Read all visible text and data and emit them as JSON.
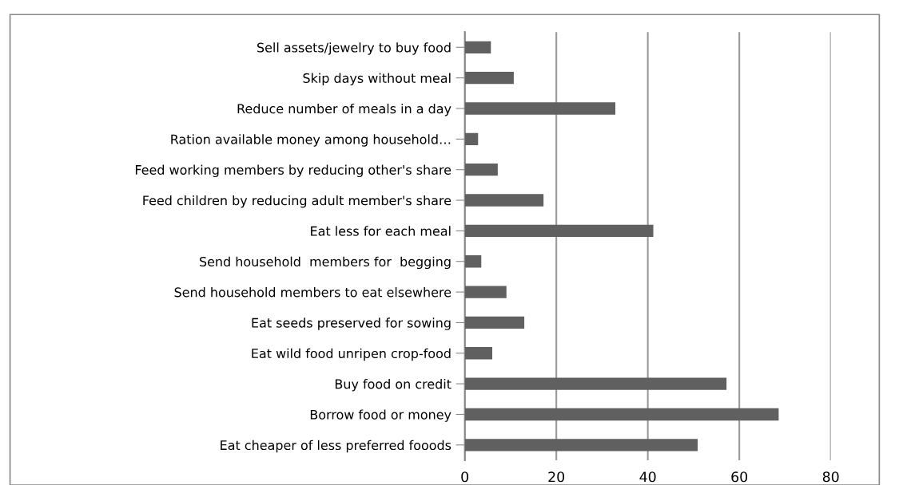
{
  "chart_data": {
    "type": "bar",
    "orientation": "horizontal",
    "categories": [
      "Sell assets/jewelry to buy food",
      "Skip days without meal",
      "Reduce number of meals in a day",
      "Ration available money among household…",
      "Feed working members by reducing other's share",
      "Feed children by reducing adult member's share",
      "Eat less for each meal",
      "Send household  members for  begging",
      "Send household members to eat elsewhere",
      "Eat seeds preserved for sowing",
      "Eat wild food unripen crop-food",
      "Buy food on credit",
      "Borrow food or money",
      "Eat cheaper of less preferred fooods"
    ],
    "values": [
      5.7,
      10.7,
      32.9,
      2.9,
      7.2,
      17.2,
      41.2,
      3.6,
      9.1,
      13.0,
      6.0,
      57.2,
      68.6,
      50.9
    ],
    "color": "#606060",
    "xlim": [
      0,
      80
    ],
    "xticks": [
      0,
      20,
      40,
      60,
      80
    ],
    "grid": "x",
    "legend": false
  }
}
